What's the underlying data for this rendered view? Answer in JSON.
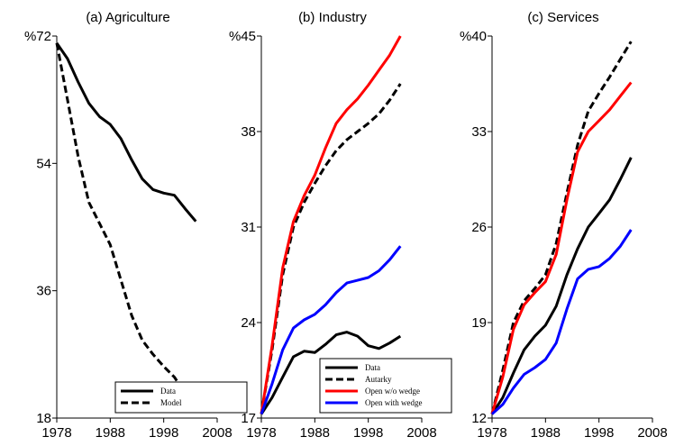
{
  "chart_data": [
    {
      "type": "line",
      "title": "(a) Agriculture",
      "x": [
        1978,
        1980,
        1982,
        1984,
        1986,
        1988,
        1990,
        1992,
        1994,
        1996,
        1998,
        2000,
        2002,
        2004
      ],
      "xlim": [
        1978,
        2008
      ],
      "xticks": [
        1978,
        1988,
        1998,
        2008
      ],
      "ylim": [
        18,
        72
      ],
      "yticks": [
        18,
        36,
        54,
        {
          "value": 72,
          "label": "%72"
        }
      ],
      "legend": "lower right",
      "series": [
        {
          "name": "Data",
          "color": "#000000",
          "linestyle": "solid",
          "values": [
            71,
            68.8,
            65.5,
            62.5,
            60.6,
            59.5,
            57.5,
            54.5,
            51.8,
            50.3,
            49.8,
            49.5,
            47.6,
            45.8
          ]
        },
        {
          "name": "Model",
          "color": "#000000",
          "linestyle": "dashed",
          "values": [
            71,
            63,
            55,
            48.5,
            45.5,
            42.5,
            37.5,
            32.5,
            29,
            27,
            25.3,
            23.8,
            21.5,
            19.2
          ]
        }
      ]
    },
    {
      "type": "line",
      "title": "(b) Industry",
      "x": [
        1978,
        1980,
        1982,
        1984,
        1986,
        1988,
        1990,
        1992,
        1994,
        1996,
        1998,
        2000,
        2002,
        2004
      ],
      "xlim": [
        1978,
        2008
      ],
      "xticks": [
        1978,
        1988,
        1998,
        2008
      ],
      "ylim": [
        17,
        45
      ],
      "yticks": [
        17,
        24,
        31,
        38,
        {
          "value": 45,
          "label": "%45"
        }
      ],
      "legend": "lower right",
      "series": [
        {
          "name": "Data",
          "color": "#000000",
          "linestyle": "solid",
          "values": [
            17.3,
            18.5,
            20,
            21.5,
            21.9,
            21.8,
            22.4,
            23.1,
            23.3,
            23,
            22.3,
            22.1,
            22.5,
            23
          ]
        },
        {
          "name": "Autarky",
          "color": "#000000",
          "linestyle": "dashed",
          "values": [
            17.3,
            22,
            27.5,
            31,
            32.8,
            34.2,
            35.5,
            36.6,
            37.4,
            38,
            38.6,
            39.3,
            40.3,
            41.5
          ]
        },
        {
          "name": "Open w/o wedge",
          "color": "#ff0000",
          "linestyle": "solid",
          "values": [
            17.3,
            22.3,
            28,
            31.4,
            33.3,
            34.8,
            36.8,
            38.6,
            39.6,
            40.4,
            41.4,
            42.5,
            43.6,
            45
          ]
        },
        {
          "name": "Open with wedge",
          "color": "#0000ff",
          "linestyle": "solid",
          "values": [
            17.3,
            19.5,
            22,
            23.6,
            24.2,
            24.6,
            25.3,
            26.2,
            26.9,
            27.1,
            27.3,
            27.8,
            28.6,
            29.6
          ]
        }
      ]
    },
    {
      "type": "line",
      "title": "(c) Services",
      "x": [
        1978,
        1980,
        1982,
        1984,
        1986,
        1988,
        1990,
        1992,
        1994,
        1996,
        1998,
        2000,
        2002,
        2004
      ],
      "xlim": [
        1978,
        2008
      ],
      "xticks": [
        1978,
        1988,
        1998,
        2008
      ],
      "ylim": [
        12,
        40
      ],
      "yticks": [
        12,
        19,
        26,
        33,
        {
          "value": 40,
          "label": "%40"
        }
      ],
      "series": [
        {
          "name": "Data",
          "color": "#000000",
          "linestyle": "solid",
          "values": [
            12.3,
            13.5,
            15.3,
            17,
            18,
            18.8,
            20.2,
            22.5,
            24.4,
            26,
            27,
            28,
            29.5,
            31.1
          ]
        },
        {
          "name": "Autarky",
          "color": "#000000",
          "linestyle": "dashed",
          "values": [
            12.3,
            15.5,
            19,
            20.6,
            21.5,
            22.5,
            24.8,
            28.5,
            32,
            34.5,
            35.8,
            37,
            38.3,
            39.6
          ]
        },
        {
          "name": "Open w/o wedge",
          "color": "#ff0000",
          "linestyle": "solid",
          "values": [
            12.3,
            15,
            18.5,
            20.3,
            21.2,
            22,
            24,
            28,
            31.5,
            33,
            33.8,
            34.6,
            35.6,
            36.6
          ]
        },
        {
          "name": "Open with wedge",
          "color": "#0000ff",
          "linestyle": "solid",
          "values": [
            12.3,
            13,
            14.2,
            15.2,
            15.7,
            16.3,
            17.5,
            20,
            22.2,
            22.9,
            23.1,
            23.7,
            24.6,
            25.8
          ]
        }
      ]
    }
  ]
}
